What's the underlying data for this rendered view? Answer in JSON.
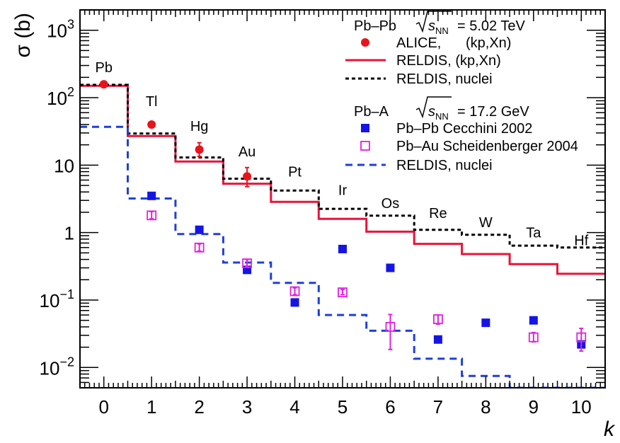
{
  "chart_data": {
    "type": "scatter",
    "xlabel": "k",
    "ylabel": "σ (b)",
    "xlim": [
      -0.5,
      10.5
    ],
    "ylim": [
      0.005,
      2000
    ],
    "y_scale": "log",
    "grid": false,
    "x_ticks": [
      "0",
      "1",
      "2",
      "3",
      "4",
      "5",
      "6",
      "7",
      "8",
      "9",
      "10"
    ],
    "y_ticks": [
      {
        "value": 0.01,
        "label": "10",
        "sup": "−2"
      },
      {
        "value": 0.1,
        "label": "10",
        "sup": "−1"
      },
      {
        "value": 1,
        "label": "1",
        "sup": ""
      },
      {
        "value": 10,
        "label": "10",
        "sup": ""
      },
      {
        "value": 100,
        "label": "10",
        "sup": "2"
      },
      {
        "value": 1000,
        "label": "10",
        "sup": "3"
      }
    ],
    "element_labels": [
      {
        "k": 0,
        "label": "Pb",
        "y": 240
      },
      {
        "k": 1,
        "label": "Tl",
        "y": 75
      },
      {
        "k": 2,
        "label": "Hg",
        "y": 32
      },
      {
        "k": 3,
        "label": "Au",
        "y": 13.5
      },
      {
        "k": 4,
        "label": "Pt",
        "y": 6.8
      },
      {
        "k": 5,
        "label": "Ir",
        "y": 3.6
      },
      {
        "k": 6,
        "label": "Os",
        "y": 2.3
      },
      {
        "k": 7,
        "label": "Re",
        "y": 1.65
      },
      {
        "k": 8,
        "label": "W",
        "y": 1.2
      },
      {
        "k": 9,
        "label": "Ta",
        "y": 0.85
      },
      {
        "k": 10,
        "label": "Hf",
        "y": 0.65
      }
    ],
    "legend": {
      "placement": "top-right",
      "header1": {
        "system": "Pb–Pb",
        "energy": "= 5.02 TeV"
      },
      "header2": {
        "system": "Pb–A",
        "energy": "= 17.2 GeV"
      },
      "sqrt_s_label": "s",
      "sqrt_s_sub": "NN",
      "entries": [
        {
          "series": "alice",
          "label_main": "ALICE,",
          "label_extra": "(kp,Xn)"
        },
        {
          "series": "reldis_kp",
          "label_main": "RELDIS, (kp,Xn)",
          "label_extra": ""
        },
        {
          "series": "reldis_nuclei_pbpb",
          "label_main": "RELDIS, nuclei",
          "label_extra": ""
        },
        {
          "series": "cecchini",
          "label_main": "Pb–Pb Cecchini 2002",
          "label_extra": ""
        },
        {
          "series": "scheidenberger",
          "label_main": "Pb–Au Scheidenberger 2004",
          "label_extra": ""
        },
        {
          "series": "reldis_nuclei_pba",
          "label_main": "RELDIS, nuclei",
          "label_extra": ""
        }
      ]
    },
    "series": [
      {
        "key": "alice",
        "kind": "points",
        "marker": "circle",
        "color": "#e8141c",
        "points": [
          {
            "x": 0,
            "y": 158,
            "ylo": 150,
            "yhi": 166
          },
          {
            "x": 1,
            "y": 40,
            "ylo": 37.5,
            "yhi": 42.5
          },
          {
            "x": 2,
            "y": 17,
            "ylo": 13.5,
            "yhi": 21.5
          },
          {
            "x": 3,
            "y": 6.8,
            "ylo": 4.8,
            "yhi": 9.2
          }
        ]
      },
      {
        "key": "reldis_kp",
        "kind": "step",
        "color": "#e8143c",
        "dash": "",
        "values": [
          150,
          27,
          11.3,
          5.3,
          2.85,
          1.6,
          1.03,
          0.68,
          0.48,
          0.34,
          0.245
        ]
      },
      {
        "key": "reldis_nuclei_pbpb",
        "kind": "step",
        "color": "#000000",
        "dash": "5,4",
        "values": [
          155,
          29.5,
          13,
          6.3,
          4.2,
          2.25,
          1.78,
          1.1,
          0.93,
          0.64,
          0.6
        ]
      },
      {
        "key": "reldis_nuclei_pba",
        "kind": "step",
        "color": "#1f3fd9",
        "dash": "10,7",
        "values": [
          37,
          3.2,
          0.95,
          0.36,
          0.18,
          0.06,
          0.035,
          0.0135,
          0.0075,
          0.005,
          0.005
        ]
      },
      {
        "key": "cecchini",
        "kind": "points",
        "marker": "square-filled",
        "color": "#1414e6",
        "points": [
          {
            "x": 1,
            "y": 3.5
          },
          {
            "x": 2,
            "y": 1.1
          },
          {
            "x": 3,
            "y": 0.28
          },
          {
            "x": 4,
            "y": 0.092
          },
          {
            "x": 5,
            "y": 0.57
          },
          {
            "x": 6,
            "y": 0.3
          },
          {
            "x": 7,
            "y": 0.026
          },
          {
            "x": 8,
            "y": 0.046
          },
          {
            "x": 9,
            "y": 0.05
          },
          {
            "x": 10,
            "y": 0.022
          }
        ]
      },
      {
        "key": "scheidenberger",
        "kind": "points",
        "marker": "square-open",
        "color": "#e020e0",
        "points": [
          {
            "x": 1,
            "y": 1.8,
            "ylo": 1.6,
            "yhi": 2.05
          },
          {
            "x": 2,
            "y": 0.6,
            "ylo": 0.53,
            "yhi": 0.68
          },
          {
            "x": 3,
            "y": 0.35,
            "ylo": 0.31,
            "yhi": 0.4
          },
          {
            "x": 4,
            "y": 0.135,
            "ylo": 0.12,
            "yhi": 0.152
          },
          {
            "x": 5,
            "y": 0.13,
            "ylo": 0.12,
            "yhi": 0.143
          },
          {
            "x": 6,
            "y": 0.04,
            "ylo": 0.0185,
            "yhi": 0.061
          },
          {
            "x": 7,
            "y": 0.052,
            "ylo": 0.044,
            "yhi": 0.06
          },
          {
            "x": 9,
            "y": 0.028,
            "ylo": 0.024,
            "yhi": 0.033
          },
          {
            "x": 10,
            "y": 0.028,
            "ylo": 0.0175,
            "yhi": 0.038
          }
        ]
      }
    ]
  }
}
